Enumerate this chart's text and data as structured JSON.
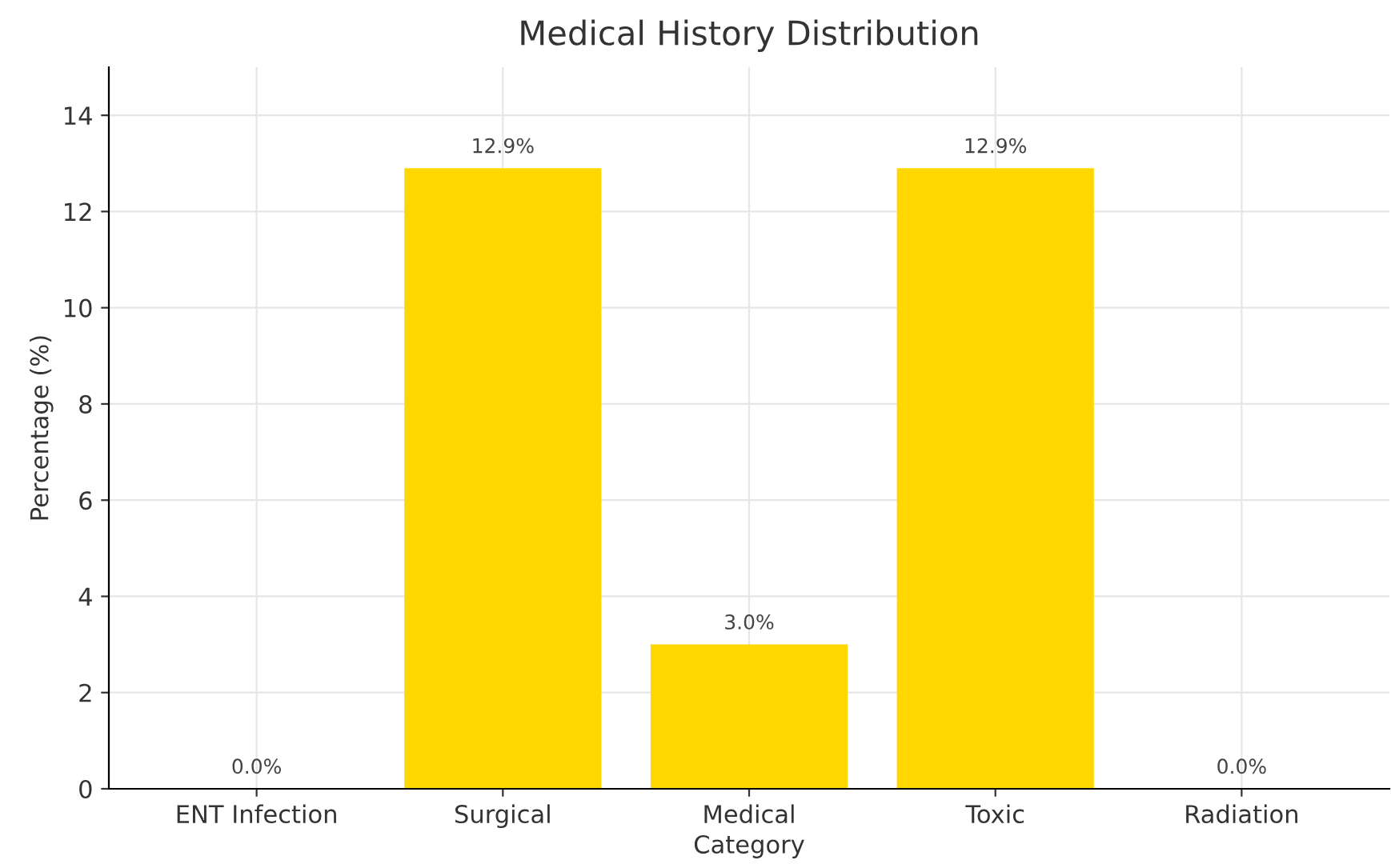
{
  "chart_data": {
    "type": "bar",
    "title": "Medical History Distribution",
    "xlabel": "Category",
    "ylabel": "Percentage (%)",
    "categories": [
      "ENT Infection",
      "Surgical",
      "Medical",
      "Toxic",
      "Radiation"
    ],
    "values": [
      0.0,
      12.9,
      3.0,
      12.9,
      0.0
    ],
    "color": "#ffd700",
    "value_labels": [
      "0.0%",
      "12.9%",
      "3.0%",
      "12.9%",
      "0.0%"
    ],
    "ylim": [
      0,
      15
    ],
    "yticks": [
      0,
      2,
      4,
      6,
      8,
      10,
      12,
      14
    ],
    "grid": true
  }
}
